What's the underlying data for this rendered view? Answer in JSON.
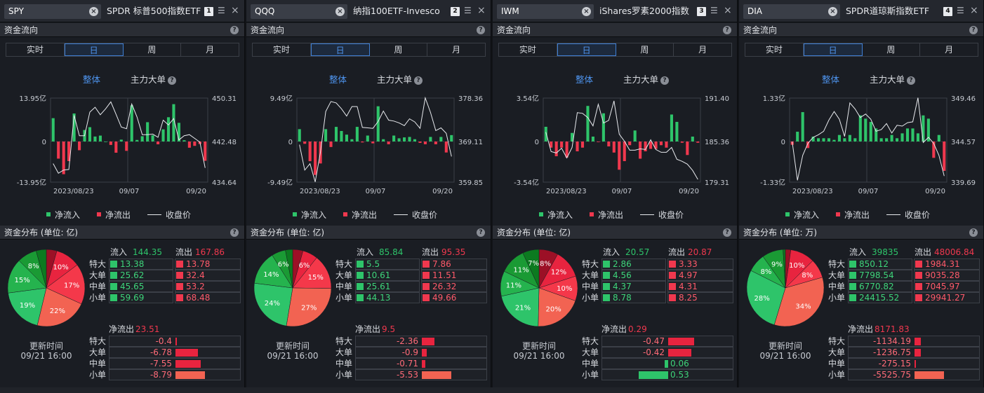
{
  "colors": {
    "inflow": "#2ec46a",
    "outflow": "#f0384e",
    "accent": "#4e94ee"
  },
  "section_titles": {
    "flow": "资金流向",
    "dist_prefix": "资金分布 (单位: "
  },
  "period_tabs": [
    "实时",
    "日",
    "周",
    "月"
  ],
  "active_period": "日",
  "modes": {
    "overall": "整体",
    "main": "主力大单"
  },
  "legend": {
    "in": "净流入",
    "out": "净流出",
    "close": "收盘价"
  },
  "dist_labels": {
    "inflow": "流入",
    "outflow": "流出",
    "net_out": "净流出",
    "update": "更新时间"
  },
  "row_labels": [
    "特大",
    "大单",
    "中单",
    "小单"
  ],
  "panels": [
    {
      "symbol": "SPY",
      "name": "SPDR 标普500指数ETF",
      "index": "1",
      "unit": "亿",
      "chart_data": {
        "type": "bar",
        "y_left_labels": [
          "13.95亿",
          "0",
          "-13.95亿"
        ],
        "y_left_max": 13.95,
        "y_right_labels": [
          "450.31",
          "442.48",
          "434.64"
        ],
        "y_right_range": [
          434.64,
          450.31
        ],
        "x_labels": [
          "2023/08/23",
          "09/07",
          "09/20"
        ],
        "net_flow": [
          7.5,
          -5.5,
          -10.5,
          -6.3,
          9,
          -2.8,
          3.7,
          4.6,
          1.6,
          1.9,
          0,
          -1.1,
          -3.6,
          0.6,
          -3,
          11.6,
          0.5,
          1.7,
          6.2,
          2,
          -0.9,
          3.9,
          7.8,
          12,
          6,
          0.4,
          -2,
          -1.4,
          -0.8,
          -6.2
        ],
        "close": [
          438.1,
          436.3,
          436.9,
          437,
          447.1,
          443.3,
          443.3,
          447.7,
          448.6,
          447.2,
          448.3,
          449.6,
          447.3,
          444.9,
          444.6,
          449.2,
          446.8,
          443.5,
          443.5,
          443.6,
          443,
          446.2,
          445.3,
          446.5,
          442.5,
          443.3,
          443.5,
          442.8,
          442.1,
          437.3
        ]
      },
      "dist": {
        "inflow": "144.35",
        "outflow": "167.86",
        "in_vals": [
          "13.38",
          "25.62",
          "45.65",
          "59.69"
        ],
        "out_vals": [
          "13.78",
          "32.4",
          "53.2",
          "68.48"
        ],
        "in_nums": [
          13.38,
          25.62,
          45.65,
          59.69
        ],
        "out_nums": [
          13.78,
          32.4,
          53.2,
          68.48
        ],
        "pie_pct": [
          "10%",
          "17%",
          "22%",
          "19%",
          "15%",
          "8%"
        ],
        "net_label_val": "23.51",
        "update_time": "09/21 16:00",
        "net_vals": [
          "-0.4",
          "-6.78",
          "-7.55",
          "-8.79"
        ],
        "net_nums": [
          -0.4,
          -6.78,
          -7.55,
          -8.79
        ]
      }
    },
    {
      "symbol": "QQQ",
      "name": "纳指100ETF-Invesco",
      "index": "2",
      "unit": "亿",
      "chart_data": {
        "type": "bar",
        "y_left_labels": [
          "9.49亿",
          "0",
          "-9.49亿"
        ],
        "y_left_max": 9.49,
        "y_right_labels": [
          "378.36",
          "369.11",
          "359.85"
        ],
        "y_right_range": [
          359.85,
          378.36
        ],
        "x_labels": [
          "2023/08/23",
          "09/07",
          "09/20"
        ],
        "net_flow": [
          2.7,
          -0.5,
          -4.3,
          -7.3,
          -4.8,
          2.7,
          -1.2,
          3.2,
          2.3,
          1.5,
          0.5,
          3.2,
          -0.2,
          1.3,
          -0.4,
          7.7,
          0.5,
          -0.6,
          1.3,
          0.7,
          0.9,
          1,
          0.5,
          -0.3,
          -0.6,
          1,
          -0.6,
          1,
          -2.4,
          1.4
        ],
        "close": [
          368.1,
          362.5,
          363.9,
          359.9,
          366.5,
          375.4,
          377.6,
          377.3,
          376,
          374.4,
          376.5,
          376.5,
          371.9,
          371.8,
          371.7,
          373.2,
          375.5,
          373.5,
          373.3,
          372.9,
          372.3,
          373.8,
          373.1,
          371.7,
          378.4,
          375.2,
          371.2,
          371.8,
          370.6,
          365.5
        ]
      },
      "dist": {
        "inflow": "85.84",
        "outflow": "95.35",
        "in_vals": [
          "5.5",
          "10.61",
          "25.61",
          "44.13"
        ],
        "out_vals": [
          "7.86",
          "11.51",
          "26.32",
          "49.66"
        ],
        "in_nums": [
          5.5,
          10.61,
          25.61,
          44.13
        ],
        "out_nums": [
          7.86,
          11.51,
          26.32,
          49.66
        ],
        "pie_pct": [
          "6%",
          "15%",
          "27%",
          "24%",
          "14%",
          "6%"
        ],
        "net_label_val": "9.5",
        "update_time": "09/21 16:00",
        "net_vals": [
          "-2.36",
          "-0.9",
          "-0.71",
          "-5.53"
        ],
        "net_nums": [
          -2.36,
          -0.9,
          -0.71,
          -5.53
        ]
      }
    },
    {
      "symbol": "IWM",
      "name": "iShares罗素2000指数",
      "index": "3",
      "unit": "亿",
      "chart_data": {
        "type": "bar",
        "y_left_labels": [
          "3.54亿",
          "0",
          "-3.54亿"
        ],
        "y_left_max": 3.54,
        "y_right_labels": [
          "191.40",
          "185.36",
          "179.31"
        ],
        "y_right_range": [
          179.31,
          191.4
        ],
        "x_labels": [
          "2023/08/23",
          "09/07",
          "09/20"
        ],
        "net_flow": [
          1.2,
          -0.5,
          -1.2,
          -0.5,
          -1.3,
          0.7,
          -0.8,
          -0.5,
          2.9,
          0.4,
          -0.05,
          2.3,
          -0.4,
          -0.9,
          -2.3,
          -1.6,
          -0.3,
          0.9,
          -1.4,
          -0.8,
          -0.6,
          -0.6,
          -0.3,
          -0.5,
          2.2,
          1.6,
          -0.1,
          -1.1,
          0.4,
          -0.1
        ],
        "close": [
          186.5,
          183.7,
          183.5,
          184.2,
          182.8,
          184.3,
          189.3,
          189.2,
          188.6,
          187.4,
          190.5,
          187.8,
          188.2,
          191,
          186.2,
          185.2,
          183.9,
          183.9,
          184.1,
          184,
          185.4,
          184,
          183.6,
          183.6,
          184.3,
          182.6,
          182.3,
          181.9,
          181,
          179.7
        ]
      },
      "dist": {
        "inflow": "20.57",
        "outflow": "20.87",
        "in_vals": [
          "2.86",
          "4.56",
          "4.37",
          "8.78"
        ],
        "out_vals": [
          "3.33",
          "4.97",
          "4.31",
          "8.25"
        ],
        "in_nums": [
          2.86,
          4.56,
          4.37,
          8.78
        ],
        "out_nums": [
          3.33,
          4.97,
          4.31,
          8.25
        ],
        "pie_pct": [
          "8%",
          "12%",
          "10%",
          "20%",
          "21%",
          "11%",
          "11%",
          "7%"
        ],
        "net_label_val": "0.29",
        "update_time": "09/21 16:00",
        "net_vals": [
          "-0.47",
          "-0.42",
          "0.06",
          "0.53"
        ],
        "net_nums": [
          -0.47,
          -0.42,
          0.06,
          0.53
        ]
      }
    },
    {
      "symbol": "DIA",
      "name": "SPDR道琼斯指数ETF",
      "index": "4",
      "unit": "万",
      "chart_data": {
        "type": "bar",
        "y_left_labels": [
          "1.33亿",
          "0",
          "-1.33亿"
        ],
        "y_left_max": 1.33,
        "y_right_labels": [
          "349.46",
          "344.57",
          "339.69"
        ],
        "y_right_range": [
          339.69,
          349.46
        ],
        "x_labels": [
          "2023/08/23",
          "09/07",
          "09/20"
        ],
        "net_flow": [
          -0.1,
          0.3,
          0.9,
          -0.2,
          0.15,
          0.1,
          0.1,
          0.1,
          0.05,
          0.2,
          0.1,
          0.2,
          0.1,
          0.8,
          0.7,
          0.6,
          0.4,
          0.1,
          0.1,
          0.2,
          0.1,
          0.25,
          0.4,
          0.4,
          0.25,
          0.8,
          0.7,
          -0.5,
          0.2,
          -0.9
        ],
        "close": [
          344.4,
          339.9,
          342.8,
          344.2,
          344.9,
          345.2,
          345.6,
          346.9,
          347.9,
          347,
          345,
          348.9,
          348.2,
          347.2,
          347.6,
          347,
          345.6,
          345.8,
          346.5,
          345.4,
          346.3,
          346.2,
          346.6,
          346.7,
          349.5,
          344.3,
          344.9,
          344.2,
          342.8,
          340.4
        ]
      },
      "dist": {
        "inflow": "39835",
        "outflow": "48006.84",
        "in_vals": [
          "850.12",
          "7798.54",
          "6770.82",
          "24415.52"
        ],
        "out_vals": [
          "1984.31",
          "9035.28",
          "7045.97",
          "29941.27"
        ],
        "in_nums": [
          850.12,
          7798.54,
          6770.82,
          24415.52
        ],
        "out_nums": [
          1984.31,
          9035.28,
          7045.97,
          29941.27
        ],
        "pie_pct": [
          "10%",
          "8%",
          "34%",
          "28%",
          "8%",
          "9%"
        ],
        "net_label_val": "8171.83",
        "update_time": "09/21 16:00",
        "net_vals": [
          "-1134.19",
          "-1236.75",
          "-275.15",
          "-5525.75"
        ],
        "net_nums": [
          -1134.19,
          -1236.75,
          -275.15,
          -5525.75
        ]
      }
    }
  ]
}
